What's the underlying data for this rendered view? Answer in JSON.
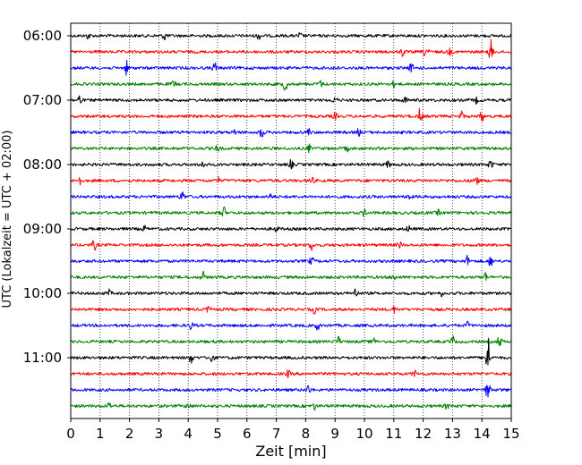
{
  "chart_data": {
    "type": "line",
    "xlabel": "Zeit  [min]",
    "ylabel": "UTC (Lokalzeit = UTC + 02:00)",
    "xlim": [
      0,
      15
    ],
    "xticks": [
      0,
      1,
      2,
      3,
      4,
      5,
      6,
      7,
      8,
      9,
      10,
      11,
      12,
      13,
      14,
      15
    ],
    "xtick_labels": [
      "0",
      "1",
      "2",
      "3",
      "4",
      "5",
      "6",
      "7",
      "8",
      "9",
      "10",
      "11",
      "12",
      "13",
      "14",
      "15"
    ],
    "ytick_labels": [
      "06:00",
      "07:00",
      "08:00",
      "09:00",
      "10:00",
      "11:00"
    ],
    "ytick_trace_index": [
      0,
      4,
      8,
      12,
      16,
      20
    ],
    "grid": "vertical-dotted",
    "trace_colors": [
      "#000000",
      "#ff0000",
      "#0000ff",
      "#008000"
    ],
    "traces": [
      {
        "start": "06:00",
        "color": "#000000",
        "events": [
          [
            0.6,
            0.6
          ],
          [
            3.2,
            0.9
          ],
          [
            6.4,
            0.6
          ],
          [
            7.8,
            0.5
          ]
        ]
      },
      {
        "start": "06:15",
        "color": "#ff0000",
        "events": [
          [
            11.3,
            0.8
          ],
          [
            12.1,
            1.6
          ],
          [
            12.9,
            0.6
          ],
          [
            14.3,
            2.2
          ]
        ]
      },
      {
        "start": "06:30",
        "color": "#0000ff",
        "events": [
          [
            1.9,
            1.2
          ],
          [
            4.9,
            1.0
          ],
          [
            9.0,
            0.5
          ],
          [
            11.6,
            0.8
          ]
        ]
      },
      {
        "start": "06:45",
        "color": "#008000",
        "events": [
          [
            3.5,
            0.6
          ],
          [
            7.3,
            1.3
          ],
          [
            8.5,
            0.6
          ],
          [
            11.0,
            0.5
          ]
        ]
      },
      {
        "start": "07:00",
        "color": "#000000",
        "events": [
          [
            0.3,
            1.0
          ],
          [
            9.0,
            0.8
          ],
          [
            11.4,
            0.6
          ],
          [
            13.8,
            0.5
          ]
        ]
      },
      {
        "start": "07:15",
        "color": "#ff0000",
        "events": [
          [
            9.0,
            0.6
          ],
          [
            11.9,
            1.5
          ],
          [
            13.3,
            0.9
          ],
          [
            14.0,
            1.0
          ]
        ]
      },
      {
        "start": "07:30",
        "color": "#0000ff",
        "events": [
          [
            6.5,
            1.3
          ],
          [
            5.6,
            0.5
          ],
          [
            8.1,
            0.6
          ],
          [
            9.8,
            0.6
          ]
        ]
      },
      {
        "start": "07:45",
        "color": "#008000",
        "events": [
          [
            5.0,
            0.6
          ],
          [
            8.1,
            0.7
          ],
          [
            9.4,
            0.5
          ]
        ]
      },
      {
        "start": "08:00",
        "color": "#000000",
        "events": [
          [
            4.5,
            0.7
          ],
          [
            7.5,
            0.8
          ],
          [
            10.8,
            0.6
          ],
          [
            14.3,
            0.9
          ]
        ]
      },
      {
        "start": "08:15",
        "color": "#ff0000",
        "events": [
          [
            0.3,
            0.9
          ],
          [
            5.0,
            0.6
          ],
          [
            8.2,
            0.8
          ],
          [
            13.8,
            1.2
          ]
        ]
      },
      {
        "start": "08:30",
        "color": "#0000ff",
        "events": [
          [
            3.8,
            1.0
          ],
          [
            6.8,
            0.5
          ],
          [
            11.5,
            0.5
          ]
        ]
      },
      {
        "start": "08:45",
        "color": "#008000",
        "events": [
          [
            5.2,
            1.2
          ],
          [
            10.0,
            0.6
          ],
          [
            12.5,
            0.5
          ]
        ]
      },
      {
        "start": "09:00",
        "color": "#000000",
        "events": [
          [
            2.5,
            0.5
          ],
          [
            7.0,
            0.5
          ],
          [
            11.5,
            0.6
          ]
        ]
      },
      {
        "start": "09:15",
        "color": "#ff0000",
        "events": [
          [
            0.8,
            1.0
          ],
          [
            8.2,
            0.9
          ],
          [
            11.2,
            0.6
          ]
        ]
      },
      {
        "start": "09:30",
        "color": "#0000ff",
        "events": [
          [
            8.2,
            0.7
          ],
          [
            13.5,
            0.9
          ],
          [
            14.3,
            1.1
          ]
        ]
      },
      {
        "start": "09:45",
        "color": "#008000",
        "events": [
          [
            4.5,
            1.0
          ],
          [
            11.0,
            0.6
          ],
          [
            14.1,
            0.9
          ]
        ]
      },
      {
        "start": "10:00",
        "color": "#000000",
        "events": [
          [
            1.3,
            0.6
          ],
          [
            9.7,
            1.0
          ],
          [
            12.6,
            0.5
          ]
        ]
      },
      {
        "start": "10:15",
        "color": "#ff0000",
        "events": [
          [
            4.7,
            0.6
          ],
          [
            8.3,
            0.7
          ],
          [
            11.0,
            0.5
          ]
        ]
      },
      {
        "start": "10:30",
        "color": "#0000ff",
        "events": [
          [
            4.1,
            0.7
          ],
          [
            8.4,
            0.8
          ],
          [
            13.5,
            0.6
          ]
        ]
      },
      {
        "start": "10:45",
        "color": "#008000",
        "events": [
          [
            9.1,
            1.0
          ],
          [
            10.3,
            0.8
          ],
          [
            13.0,
            1.0
          ],
          [
            14.6,
            1.1
          ]
        ]
      },
      {
        "start": "11:00",
        "color": "#000000",
        "events": [
          [
            4.1,
            1.0
          ],
          [
            4.8,
            0.9
          ],
          [
            14.2,
            4.5
          ]
        ]
      },
      {
        "start": "11:15",
        "color": "#ff0000",
        "events": [
          [
            7.4,
            0.6
          ],
          [
            11.7,
            0.5
          ]
        ]
      },
      {
        "start": "11:30",
        "color": "#0000ff",
        "events": [
          [
            8.1,
            0.9
          ],
          [
            14.2,
            2.0
          ]
        ]
      },
      {
        "start": "11:45",
        "color": "#008000",
        "events": [
          [
            1.3,
            0.6
          ],
          [
            4.0,
            0.6
          ],
          [
            8.3,
            0.6
          ],
          [
            12.8,
            0.5
          ]
        ]
      }
    ]
  }
}
